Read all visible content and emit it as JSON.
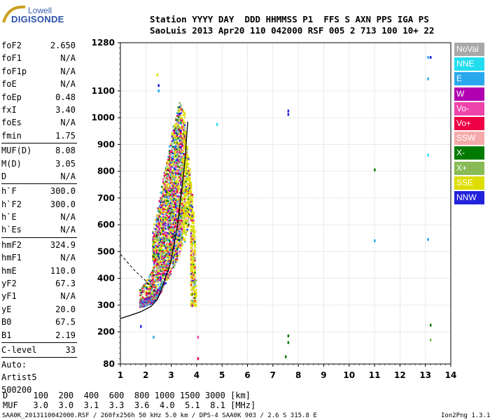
{
  "logo": {
    "line1": "Lowell",
    "line2": "DIGISONDE"
  },
  "header": {
    "line1": "Station YYYY DAY  DDD HHMMSS P1  FFS S AXN PPS IGA PS",
    "line2": "SaoLuis 2013 Apr20 110 042000 RSF 005 2 713 100 10+ 22"
  },
  "params_group1": [
    {
      "name": "foF2",
      "value": "2.650"
    },
    {
      "name": "foF1",
      "value": "N/A"
    },
    {
      "name": "foF1p",
      "value": "N/A"
    },
    {
      "name": "foE",
      "value": "N/A"
    },
    {
      "name": "foEp",
      "value": "0.48"
    },
    {
      "name": "fxI",
      "value": "3.40"
    },
    {
      "name": "foEs",
      "value": "N/A"
    },
    {
      "name": "fmin",
      "value": "1.75"
    }
  ],
  "params_group2": [
    {
      "name": "MUF(D)",
      "value": "8.08"
    },
    {
      "name": "M(D)",
      "value": "3.05"
    },
    {
      "name": "D",
      "value": "N/A"
    }
  ],
  "params_group3": [
    {
      "name": "h`F",
      "value": "300.0"
    },
    {
      "name": "h`F2",
      "value": "300.0"
    },
    {
      "name": "h`E",
      "value": "N/A"
    },
    {
      "name": "h`Es",
      "value": "N/A"
    }
  ],
  "params_group4": [
    {
      "name": "hmF2",
      "value": "324.9"
    },
    {
      "name": "hmF1",
      "value": "N/A"
    },
    {
      "name": "hmE",
      "value": "110.0"
    },
    {
      "name": "yF2",
      "value": "67.3"
    },
    {
      "name": "yF1",
      "value": "N/A"
    },
    {
      "name": "yE",
      "value": "20.0"
    },
    {
      "name": "B0",
      "value": "67.5"
    },
    {
      "name": "B1",
      "value": "2.19"
    }
  ],
  "params_group5": [
    {
      "name": "C-level",
      "value": "33"
    }
  ],
  "auto": {
    "line1": "Auto:",
    "line2": "Artist5",
    "line3": "500200"
  },
  "legend": [
    {
      "label": "NoVal",
      "color": "#a8a8a8"
    },
    {
      "label": "NNE",
      "color": "#22ddee"
    },
    {
      "label": "E",
      "color": "#2aa8ee"
    },
    {
      "label": "W",
      "color": "#b000b0"
    },
    {
      "label": "Vo-",
      "color": "#ee44aa"
    },
    {
      "label": "Vo+",
      "color": "#ee0044"
    },
    {
      "label": "SSW",
      "color": "#f4aaaa"
    },
    {
      "label": "X-",
      "color": "#007a00"
    },
    {
      "label": "X+",
      "color": "#88bb55"
    },
    {
      "label": "SSE",
      "color": "#dddd00"
    },
    {
      "label": "NNW",
      "color": "#2222dd"
    }
  ],
  "footer": {
    "d_line": "D     100  200  400  600  800 1000 1500 3000 [km]",
    "muf_line": "MUF   3.0  3.0  3.1  3.3  3.6  4.0  5.1  8.1 [MHz]",
    "info_line": "SAA0K_2013110042000.RSF / 260fx256h 50 kHz 5.0 km / DPS-4 SAA0K 903 / 2.6 S 315.8 E",
    "version": "Ion2Png 1.3.17"
  },
  "chart_data": {
    "type": "scatter",
    "title": "",
    "xlabel": "",
    "ylabel": "",
    "xlim": [
      1,
      14
    ],
    "ylim": [
      80,
      1280
    ],
    "x_ticks": [
      1,
      2,
      3,
      4,
      5,
      6,
      7,
      8,
      9,
      10,
      11,
      12,
      13,
      14
    ],
    "y_ticks": [
      80,
      200,
      300,
      400,
      500,
      600,
      700,
      800,
      900,
      1000,
      1100,
      1280
    ],
    "grid": true,
    "legend_position": "right",
    "echo_cloud": {
      "description_units": "frequency MHz vs virtual height km",
      "lower_trace": [
        [
          1.75,
          300
        ],
        [
          2.0,
          305
        ],
        [
          2.3,
          320
        ],
        [
          2.6,
          360
        ],
        [
          2.9,
          410
        ],
        [
          3.2,
          470
        ],
        [
          3.5,
          540
        ],
        [
          3.7,
          620
        ]
      ],
      "upper_trace": [
        [
          2.2,
          560
        ],
        [
          2.5,
          700
        ],
        [
          2.8,
          850
        ],
        [
          3.1,
          1000
        ],
        [
          3.3,
          1060
        ],
        [
          3.5,
          1020
        ],
        [
          3.6,
          900
        ],
        [
          3.8,
          720
        ],
        [
          3.9,
          580
        ]
      ]
    },
    "isolated_echoes": [
      {
        "f": 4.8,
        "h": 975,
        "dir": "NNE"
      },
      {
        "f": 7.6,
        "h": 1012,
        "dir": "NNW"
      },
      {
        "f": 7.6,
        "h": 1025,
        "dir": "NNW"
      },
      {
        "f": 11.0,
        "h": 805,
        "dir": "X-"
      },
      {
        "f": 11.0,
        "h": 540,
        "dir": "E"
      },
      {
        "f": 13.1,
        "h": 1225,
        "dir": "E"
      },
      {
        "f": 13.2,
        "h": 1225,
        "dir": "NNW"
      },
      {
        "f": 13.1,
        "h": 1145,
        "dir": "E"
      },
      {
        "f": 13.1,
        "h": 860,
        "dir": "NNE"
      },
      {
        "f": 13.1,
        "h": 545,
        "dir": "E"
      },
      {
        "f": 13.2,
        "h": 225,
        "dir": "X-"
      },
      {
        "f": 13.2,
        "h": 170,
        "dir": "X+"
      },
      {
        "f": 7.6,
        "h": 185,
        "dir": "X-"
      },
      {
        "f": 7.6,
        "h": 160,
        "dir": "X-"
      },
      {
        "f": 7.5,
        "h": 107,
        "dir": "X-"
      },
      {
        "f": 4.05,
        "h": 180,
        "dir": "Vo-"
      },
      {
        "f": 4.05,
        "h": 100,
        "dir": "Vo+"
      },
      {
        "f": 2.3,
        "h": 180,
        "dir": "E"
      },
      {
        "f": 1.8,
        "h": 220,
        "dir": "NNW"
      },
      {
        "f": 2.5,
        "h": 1120,
        "dir": "NNW"
      },
      {
        "f": 2.5,
        "h": 1100,
        "dir": "E"
      },
      {
        "f": 2.45,
        "h": 1160,
        "dir": "SSE"
      }
    ],
    "profile_curve": [
      [
        1.0,
        250
      ],
      [
        1.4,
        262
      ],
      [
        1.8,
        275
      ],
      [
        2.2,
        295
      ],
      [
        2.45,
        320
      ],
      [
        2.6,
        355
      ],
      [
        2.75,
        395
      ],
      [
        2.95,
        450
      ],
      [
        3.1,
        520
      ],
      [
        3.25,
        600
      ],
      [
        3.35,
        680
      ],
      [
        3.45,
        760
      ],
      [
        3.55,
        850
      ],
      [
        3.6,
        920
      ],
      [
        3.65,
        985
      ]
    ],
    "dashed_line": [
      [
        1.0,
        490
      ],
      [
        1.55,
        430
      ],
      [
        1.95,
        395
      ],
      [
        2.2,
        370
      ],
      [
        2.45,
        345
      ]
    ]
  }
}
